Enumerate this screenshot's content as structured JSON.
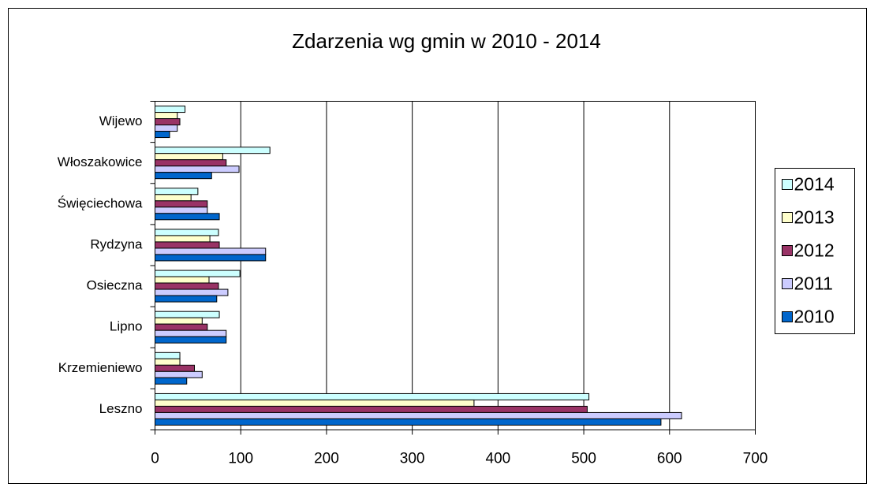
{
  "chart_data": {
    "type": "bar",
    "orientation": "horizontal",
    "title": "Zdarzenia wg gmin w 2010 - 2014",
    "categories": [
      "Leszno",
      "Krzemieniewo",
      "Lipno",
      "Osieczna",
      "Rydzyna",
      "Święciechowa",
      "Włoszakowice",
      "Wijewo"
    ],
    "series": [
      {
        "name": "2014",
        "color": "#ccffff",
        "values": [
          506,
          29,
          75,
          99,
          74,
          50,
          134,
          35
        ]
      },
      {
        "name": "2013",
        "color": "#ffffcc",
        "values": [
          372,
          29,
          55,
          63,
          64,
          42,
          79,
          26
        ]
      },
      {
        "name": "2012",
        "color": "#993366",
        "values": [
          504,
          46,
          61,
          74,
          75,
          61,
          83,
          29
        ]
      },
      {
        "name": "2011",
        "color": "#ccccff",
        "values": [
          614,
          55,
          83,
          85,
          129,
          61,
          98,
          26
        ]
      },
      {
        "name": "2010",
        "color": "#0066cc",
        "values": [
          590,
          37,
          83,
          72,
          129,
          75,
          66,
          17
        ]
      }
    ],
    "xlim": [
      0,
      700
    ],
    "xticks": [
      0,
      100,
      200,
      300,
      400,
      500,
      600,
      700
    ],
    "grid": true,
    "legend": "right"
  }
}
